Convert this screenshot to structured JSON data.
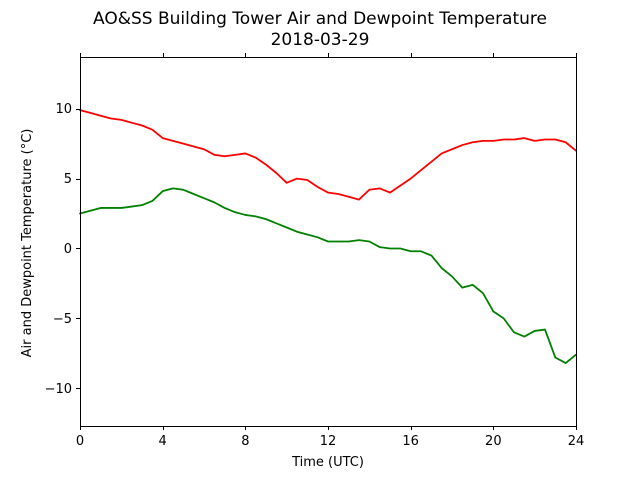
{
  "chart_data": {
    "type": "line",
    "title": "AO&SS Building Tower Air and Dewpoint Temperature",
    "subtitle": "2018-03-29",
    "xlabel": "Time (UTC)",
    "ylabel": "Air and Dewpoint Temperature (°C)",
    "xlim": [
      0,
      24
    ],
    "ylim": [
      -12.7,
      13.7
    ],
    "x_ticks": [
      0,
      4,
      8,
      12,
      16,
      20,
      24
    ],
    "y_ticks": [
      -10,
      -5,
      0,
      5,
      10
    ],
    "grid": false,
    "legend": "none",
    "colors": {
      "air": "#ff0000",
      "dewpoint": "#008000"
    },
    "series": [
      {
        "color": "#ff0000",
        "x": [
          0,
          0.5,
          1,
          1.5,
          2,
          2.5,
          3,
          3.5,
          4,
          4.5,
          5,
          5.5,
          6,
          6.5,
          7,
          7.5,
          8,
          8.5,
          9,
          9.5,
          10,
          10.5,
          11,
          11.5,
          12,
          12.5,
          13,
          13.5,
          14,
          14.5,
          15,
          15.5,
          16,
          16.5,
          17,
          17.5,
          18,
          18.5,
          19,
          19.5,
          20,
          20.5,
          21,
          21.5,
          22,
          22.5,
          23,
          23.5,
          24
        ],
        "y": [
          9.9,
          9.7,
          9.5,
          9.3,
          9.2,
          9.0,
          8.8,
          8.5,
          7.9,
          7.7,
          7.5,
          7.3,
          7.1,
          6.7,
          6.6,
          6.7,
          6.8,
          6.5,
          6.0,
          5.4,
          4.7,
          5.0,
          4.9,
          4.4,
          4.0,
          3.9,
          3.7,
          3.5,
          4.2,
          4.3,
          4.0,
          4.5,
          5.0,
          5.6,
          6.2,
          6.8,
          7.1,
          7.4,
          7.6,
          7.7,
          7.7,
          7.8,
          7.8,
          7.9,
          7.7,
          7.8,
          7.8,
          7.6,
          7.0
        ]
      },
      {
        "color": "#008000",
        "x": [
          0,
          0.5,
          1,
          1.5,
          2,
          2.5,
          3,
          3.5,
          4,
          4.5,
          5,
          5.5,
          6,
          6.5,
          7,
          7.5,
          8,
          8.5,
          9,
          9.5,
          10,
          10.5,
          11,
          11.5,
          12,
          12.5,
          13,
          13.5,
          14,
          14.5,
          15,
          15.5,
          16,
          16.5,
          17,
          17.5,
          18,
          18.5,
          19,
          19.5,
          20,
          20.5,
          21,
          21.5,
          22,
          22.5,
          23,
          23.5,
          24
        ],
        "y": [
          2.5,
          2.7,
          2.9,
          2.9,
          2.9,
          3.0,
          3.1,
          3.4,
          4.1,
          4.3,
          4.2,
          3.9,
          3.6,
          3.3,
          2.9,
          2.6,
          2.4,
          2.3,
          2.1,
          1.8,
          1.5,
          1.2,
          1.0,
          0.8,
          0.5,
          0.5,
          0.5,
          0.6,
          0.5,
          0.1,
          0.0,
          0.0,
          -0.2,
          -0.2,
          -0.5,
          -1.4,
          -2.0,
          -2.8,
          -2.6,
          -3.2,
          -4.5,
          -5.0,
          -6.0,
          -6.3,
          -5.9,
          -5.8,
          -7.8,
          -8.2,
          -7.6
        ]
      }
    ]
  }
}
